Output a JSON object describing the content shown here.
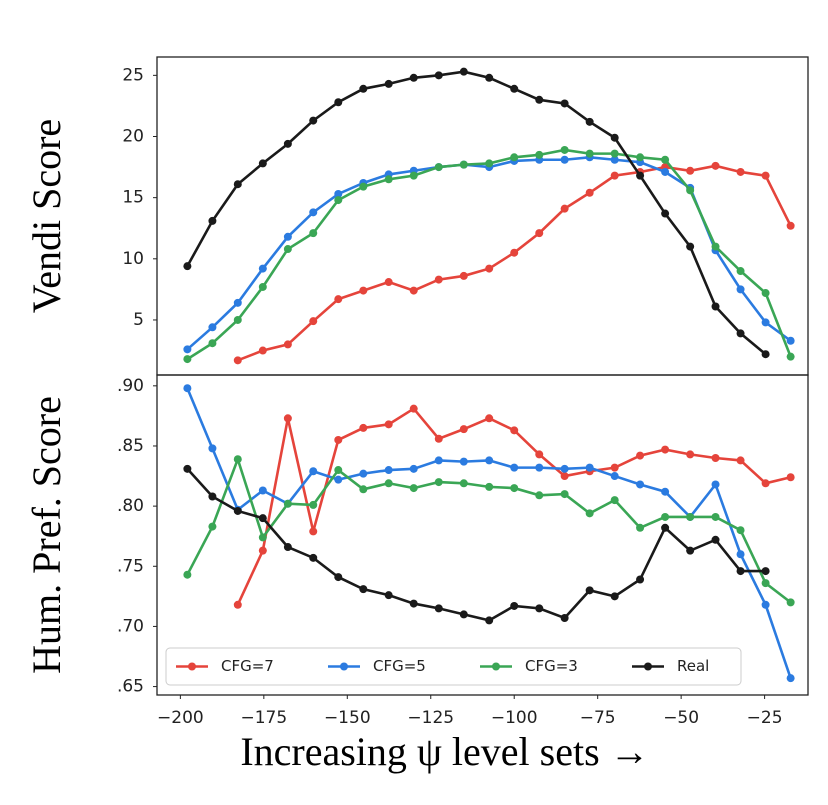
{
  "chart_data": [
    {
      "type": "line",
      "ylabel": "Vendi Score",
      "x": [
        -197.9,
        -190.4,
        -182.8,
        -175.3,
        -167.8,
        -160.2,
        -152.7,
        -145.2,
        -137.6,
        -130.1,
        -122.6,
        -115.1,
        -107.5,
        -100.0,
        -92.5,
        -84.9,
        -77.4,
        -69.9,
        -62.3,
        -54.8,
        -47.3,
        -39.7,
        -32.2,
        -24.7,
        -17.2
      ],
      "xlim": [
        -207,
        -12
      ],
      "ylim": [
        0.5,
        26.5
      ],
      "yticks": [
        5,
        10,
        15,
        20,
        25
      ],
      "series": [
        {
          "color": "#e5443b",
          "values": [
            null,
            null,
            1.7,
            2.5,
            3.0,
            4.9,
            6.7,
            7.4,
            8.1,
            7.4,
            8.3,
            8.6,
            9.2,
            10.5,
            12.1,
            14.1,
            15.4,
            16.8,
            17.1,
            17.5,
            17.2,
            17.6,
            17.1,
            16.8,
            12.7
          ]
        },
        {
          "color": "#2b7be0",
          "values": [
            2.6,
            4.4,
            6.4,
            9.2,
            11.8,
            13.8,
            15.3,
            16.2,
            16.9,
            17.2,
            17.5,
            17.7,
            17.5,
            18.0,
            18.1,
            18.1,
            18.3,
            18.1,
            17.9,
            17.1,
            15.8,
            10.7,
            7.5,
            4.8,
            3.3
          ]
        },
        {
          "color": "#3aa655",
          "values": [
            1.8,
            3.1,
            5.0,
            7.7,
            10.8,
            12.1,
            14.8,
            15.9,
            16.5,
            16.8,
            17.5,
            17.7,
            17.8,
            18.3,
            18.5,
            18.9,
            18.6,
            18.6,
            18.3,
            18.1,
            15.6,
            11.0,
            9.0,
            7.2,
            2.0
          ]
        },
        {
          "color": "#1a1a1a",
          "values": [
            9.4,
            13.1,
            16.1,
            17.8,
            19.4,
            21.3,
            22.8,
            23.9,
            24.3,
            24.8,
            25.0,
            25.3,
            24.8,
            23.9,
            23.0,
            22.7,
            21.2,
            19.9,
            16.8,
            13.7,
            11.0,
            6.1,
            3.9,
            2.2,
            null
          ]
        }
      ]
    },
    {
      "type": "line",
      "ylabel": "Hum. Pref. Score",
      "xlabel": "Increasing ψ level sets →",
      "x": [
        -197.9,
        -190.4,
        -182.8,
        -175.3,
        -167.8,
        -160.2,
        -152.7,
        -145.2,
        -137.6,
        -130.1,
        -122.6,
        -115.1,
        -107.5,
        -100.0,
        -92.5,
        -84.9,
        -77.4,
        -69.9,
        -62.3,
        -54.8,
        -47.3,
        -39.7,
        -32.2,
        -24.7,
        -17.2
      ],
      "xlim": [
        -207,
        -12
      ],
      "ylim": [
        0.643,
        0.909
      ],
      "xticks": [
        {
          "value": -200,
          "label": "−200"
        },
        {
          "value": -175,
          "label": "−175"
        },
        {
          "value": -150,
          "label": "−150"
        },
        {
          "value": -125,
          "label": "−125"
        },
        {
          "value": -100,
          "label": "−100"
        },
        {
          "value": -75,
          "label": "−75"
        },
        {
          "value": -50,
          "label": "−50"
        },
        {
          "value": -25,
          "label": "−25"
        }
      ],
      "yticks": [
        {
          "value": 0.65,
          "label": ".65"
        },
        {
          "value": 0.7,
          "label": ".70"
        },
        {
          "value": 0.75,
          "label": ".75"
        },
        {
          "value": 0.8,
          "label": ".80"
        },
        {
          "value": 0.85,
          "label": ".85"
        },
        {
          "value": 0.9,
          "label": ".90"
        }
      ],
      "legend": "lower left",
      "series": [
        {
          "name": "CFG=7",
          "color": "#e5443b",
          "values": [
            null,
            null,
            0.718,
            0.763,
            0.873,
            0.779,
            0.855,
            0.865,
            0.868,
            0.881,
            0.856,
            0.864,
            0.873,
            0.863,
            0.843,
            0.825,
            0.829,
            0.832,
            0.842,
            0.847,
            0.843,
            0.84,
            0.838,
            0.819,
            0.824
          ]
        },
        {
          "name": "CFG=5",
          "color": "#2b7be0",
          "values": [
            0.898,
            0.848,
            0.797,
            0.813,
            0.802,
            0.829,
            0.822,
            0.827,
            0.83,
            0.831,
            0.838,
            0.837,
            0.838,
            0.832,
            0.832,
            0.831,
            0.832,
            0.825,
            0.818,
            0.812,
            0.791,
            0.818,
            0.76,
            0.718,
            0.657
          ]
        },
        {
          "name": "CFG=3",
          "color": "#3aa655",
          "values": [
            0.743,
            0.783,
            0.839,
            0.774,
            0.802,
            0.801,
            0.83,
            0.814,
            0.819,
            0.815,
            0.82,
            0.819,
            0.816,
            0.815,
            0.809,
            0.81,
            0.794,
            0.805,
            0.782,
            0.791,
            0.791,
            0.791,
            0.78,
            0.736,
            0.72
          ]
        },
        {
          "name": "Real",
          "color": "#1a1a1a",
          "values": [
            0.831,
            0.808,
            0.796,
            0.79,
            0.766,
            0.757,
            0.741,
            0.731,
            0.726,
            0.719,
            0.715,
            0.71,
            0.705,
            0.717,
            0.715,
            0.707,
            0.73,
            0.725,
            0.739,
            0.782,
            0.763,
            0.772,
            0.746,
            0.746,
            null
          ]
        }
      ]
    }
  ]
}
